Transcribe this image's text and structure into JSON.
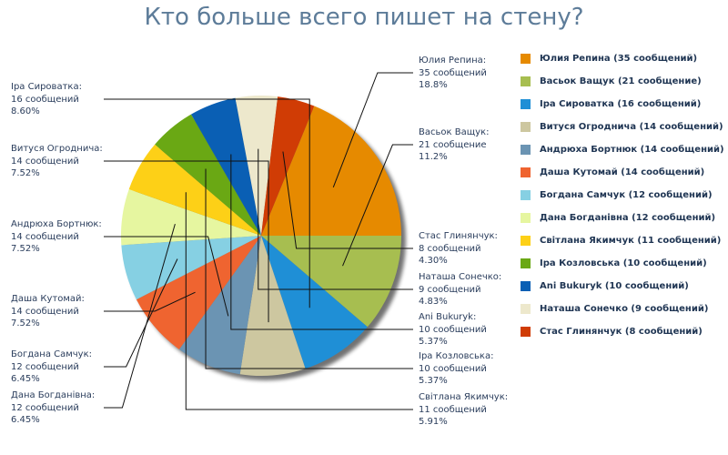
{
  "chart_data": {
    "type": "pie",
    "title": "Кто больше всего пишет на стену?",
    "legend_position": "right",
    "slices": [
      {
        "name": "Юлия Репина",
        "value": 35,
        "unit": "сообщений",
        "percent": "18.8%",
        "color": "#e68a00",
        "legend": "Юлия Репина (35 сообщений)"
      },
      {
        "name": "Васьок Ващук",
        "value": 21,
        "unit": "сообщение",
        "percent": "11.2%",
        "color": "#a7be50",
        "legend": "Васьок Ващук (21 сообщение)"
      },
      {
        "name": "Іра Сироватка",
        "value": 16,
        "unit": "сообщений",
        "percent": "8.60%",
        "color": "#1f8fd6",
        "legend": "Іра Сироватка (16 сообщений)"
      },
      {
        "name": "Витуся Огроднича",
        "value": 14,
        "unit": "сообщений",
        "percent": "7.52%",
        "color": "#cdc7a0",
        "legend": "Витуся Огроднича (14 сообщений)"
      },
      {
        "name": "Андрюха Бортнюк",
        "value": 14,
        "unit": "сообщений",
        "percent": "7.52%",
        "color": "#6b94b3",
        "legend": "Андрюха Бортнюк (14 сообщений)"
      },
      {
        "name": "Даша Кутомай",
        "value": 14,
        "unit": "сообщений",
        "percent": "7.52%",
        "color": "#ef6430",
        "legend": "Даша Кутомай (14 сообщений)"
      },
      {
        "name": "Богдана Самчук",
        "value": 12,
        "unit": "сообщений",
        "percent": "6.45%",
        "color": "#86d0e3",
        "legend": "Богдана Самчук (12 сообщений)"
      },
      {
        "name": "Дана Богданівна",
        "value": 12,
        "unit": "сообщений",
        "percent": "6.45%",
        "color": "#e6f6a0",
        "legend": "Дана Богданівна (12 сообщений)"
      },
      {
        "name": "Світлана Якимчук",
        "value": 11,
        "unit": "сообщений",
        "percent": "5.91%",
        "color": "#fdd017",
        "legend": "Світлана Якимчук (11 сообщений)"
      },
      {
        "name": "Іра Козловська",
        "value": 10,
        "unit": "сообщений",
        "percent": "5.37%",
        "color": "#6aa814",
        "legend": "Іра Козловська (10 сообщений)"
      },
      {
        "name": "Ani Bukuryk",
        "value": 10,
        "unit": "сообщений",
        "percent": "5.37%",
        "color": "#0a5fb4",
        "legend": "Ani Bukuryk (10 сообщений)"
      },
      {
        "name": "Наташа Сонечко",
        "value": 9,
        "unit": "сообщений",
        "percent": "4.83%",
        "color": "#ede8cc",
        "legend": "Наташа Сонечко (9 сообщений)"
      },
      {
        "name": "Стас Глинянчук",
        "value": 8,
        "unit": "сообщений",
        "percent": "4.30%",
        "color": "#d03c05",
        "legend": "Стас Глинянчук (8 сообщений)"
      }
    ]
  }
}
